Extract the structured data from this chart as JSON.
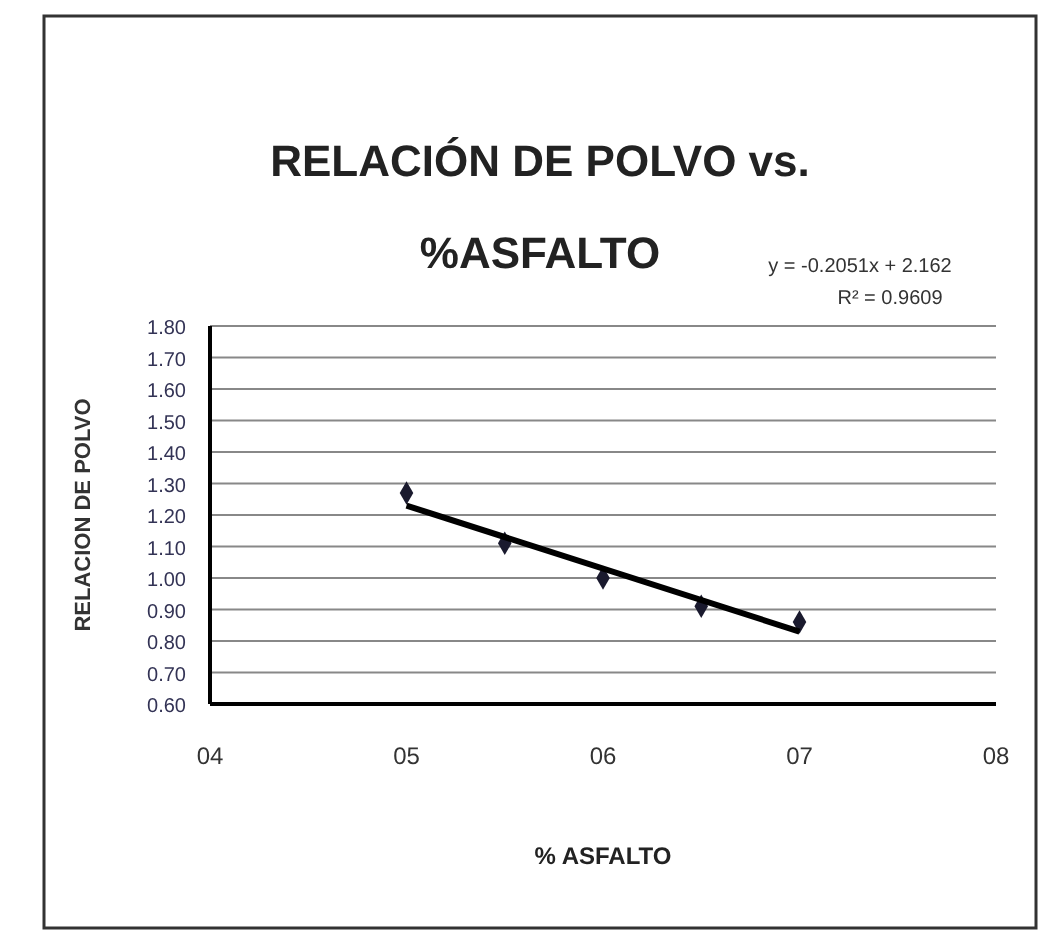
{
  "chart_data": {
    "type": "scatter",
    "title": "RELACIÓN DE POLVO vs. %ASFALTO",
    "xlabel": "% ASFALTO",
    "ylabel": "RELACION DE POLVO",
    "annotations": [
      "y = -0.2051x + 2.162",
      "R² = 0.9609"
    ],
    "x": [
      5,
      5.5,
      6,
      6.5,
      7
    ],
    "series": [
      {
        "color": "#1a1a2e",
        "values": [
          1.27,
          1.11,
          1.0,
          0.91,
          0.86
        ]
      },
      {
        "type": "line",
        "marker": "none",
        "color": "#000000",
        "x": [
          5,
          7
        ],
        "values": [
          1.23,
          0.83
        ]
      }
    ],
    "marker": "diamond",
    "grid": "y",
    "xlim": [
      4,
      8
    ],
    "xticks": [
      {
        "value": 4,
        "label": "04"
      },
      {
        "value": 5,
        "label": "05"
      },
      {
        "value": 6,
        "label": "06"
      },
      {
        "value": 7,
        "label": "07"
      },
      {
        "value": 8,
        "label": "08"
      }
    ],
    "ylim": [
      0.6,
      1.8
    ],
    "yticks": [
      {
        "value": 0.6,
        "label": "0.60"
      },
      {
        "value": 0.7,
        "label": "0.70"
      },
      {
        "value": 0.8,
        "label": "0.80"
      },
      {
        "value": 0.9,
        "label": "0.90"
      },
      {
        "value": 1.0,
        "label": "1.00"
      },
      {
        "value": 1.1,
        "label": "1.10"
      },
      {
        "value": 1.2,
        "label": "1.20"
      },
      {
        "value": 1.3,
        "label": "1.30"
      },
      {
        "value": 1.4,
        "label": "1.40"
      },
      {
        "value": 1.5,
        "label": "1.50"
      },
      {
        "value": 1.6,
        "label": "1.60"
      },
      {
        "value": 1.7,
        "label": "1.70"
      },
      {
        "value": 1.8,
        "label": "1.80"
      }
    ]
  }
}
